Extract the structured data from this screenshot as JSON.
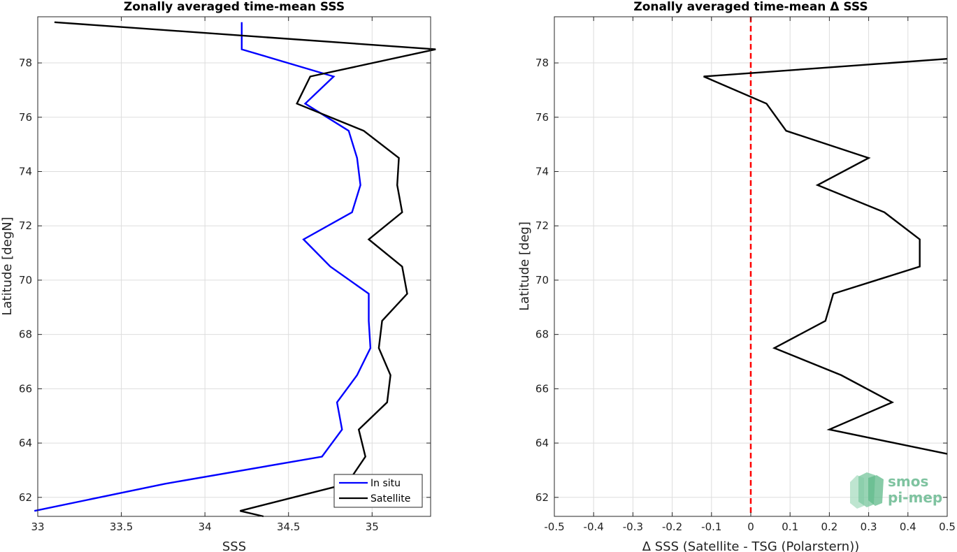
{
  "chart_data": [
    {
      "type": "line",
      "title": "Zonally averaged time-mean SSS",
      "xlabel": "SSS",
      "ylabel": "Latitude [degN]",
      "xlim": [
        33,
        35.35
      ],
      "ylim": [
        61.3,
        79.7
      ],
      "xticks": [
        "33",
        "33.5",
        "34",
        "34.5",
        "35"
      ],
      "xtick_values": [
        33,
        33.5,
        34,
        34.5,
        35
      ],
      "yticks": [
        "62",
        "64",
        "66",
        "68",
        "70",
        "72",
        "74",
        "76",
        "78"
      ],
      "ytick_values": [
        62,
        64,
        66,
        68,
        70,
        72,
        74,
        76,
        78
      ],
      "grid": true,
      "legend_position": "bottom-right",
      "series": [
        {
          "name": "In situ",
          "color": "#0000ff",
          "points": [
            [
              34.22,
              79.5
            ],
            [
              34.22,
              78.5
            ],
            [
              34.77,
              77.5
            ],
            [
              34.6,
              76.5
            ],
            [
              34.86,
              75.5
            ],
            [
              34.91,
              74.5
            ],
            [
              34.93,
              73.5
            ],
            [
              34.88,
              72.5
            ],
            [
              34.59,
              71.5
            ],
            [
              34.75,
              70.5
            ],
            [
              34.98,
              69.5
            ],
            [
              34.98,
              68.5
            ],
            [
              34.99,
              67.5
            ],
            [
              34.91,
              66.5
            ],
            [
              34.79,
              65.5
            ],
            [
              34.82,
              64.5
            ],
            [
              34.7,
              63.5
            ],
            [
              33.76,
              62.5
            ],
            [
              32.98,
              61.5
            ]
          ]
        },
        {
          "name": "Satellite",
          "color": "#000000",
          "points": [
            [
              33.1,
              79.5
            ],
            [
              35.38,
              78.5
            ],
            [
              34.63,
              77.5
            ],
            [
              34.55,
              76.5
            ],
            [
              34.95,
              75.5
            ],
            [
              35.16,
              74.5
            ],
            [
              35.15,
              73.5
            ],
            [
              35.18,
              72.5
            ],
            [
              34.98,
              71.5
            ],
            [
              35.18,
              70.5
            ],
            [
              35.21,
              69.5
            ],
            [
              35.06,
              68.5
            ],
            [
              35.04,
              67.5
            ],
            [
              35.11,
              66.5
            ],
            [
              35.09,
              65.5
            ],
            [
              34.92,
              64.5
            ],
            [
              34.96,
              63.5
            ],
            [
              34.85,
              62.5
            ],
            [
              34.21,
              61.5
            ],
            [
              34.35,
              61.3
            ]
          ]
        }
      ]
    },
    {
      "type": "line",
      "title": "Zonally averaged time-mean Δ SSS",
      "xlabel": "Δ SSS (Satellite - TSG (Polarstern))",
      "ylabel": "Latitude [deg]",
      "xlim": [
        -0.5,
        0.5
      ],
      "ylim": [
        61.3,
        79.7
      ],
      "xticks": [
        "-0.5",
        "-0.4",
        "-0.3",
        "-0.2",
        "-0.1",
        "0",
        "0.1",
        "0.2",
        "0.3",
        "0.4",
        "0.5"
      ],
      "xtick_values": [
        -0.5,
        -0.4,
        -0.3,
        -0.2,
        -0.1,
        0,
        0.1,
        0.2,
        0.3,
        0.4,
        0.5
      ],
      "yticks": [
        "62",
        "64",
        "66",
        "68",
        "70",
        "72",
        "74",
        "76",
        "78"
      ],
      "ytick_values": [
        62,
        64,
        66,
        68,
        70,
        72,
        74,
        76,
        78
      ],
      "grid": true,
      "reference_line": {
        "x": 0,
        "color": "#ff0000",
        "style": "dashed"
      },
      "series": [
        {
          "color": "#000000",
          "points": [
            [
              0.5,
              78.15
            ],
            [
              -0.12,
              77.5
            ],
            [
              0.04,
              76.5
            ],
            [
              0.09,
              75.5
            ],
            [
              0.3,
              74.5
            ],
            [
              0.17,
              73.5
            ],
            [
              0.34,
              72.5
            ],
            [
              0.43,
              71.5
            ],
            [
              0.43,
              70.5
            ],
            [
              0.21,
              69.5
            ],
            [
              0.19,
              68.5
            ],
            [
              0.06,
              67.5
            ],
            [
              0.23,
              66.5
            ],
            [
              0.36,
              65.5
            ],
            [
              0.2,
              64.5
            ],
            [
              0.5,
              63.6
            ]
          ]
        }
      ]
    }
  ],
  "logo": {
    "line1": "smos",
    "line2": "pi-mep",
    "color": "#7fc3a0"
  }
}
